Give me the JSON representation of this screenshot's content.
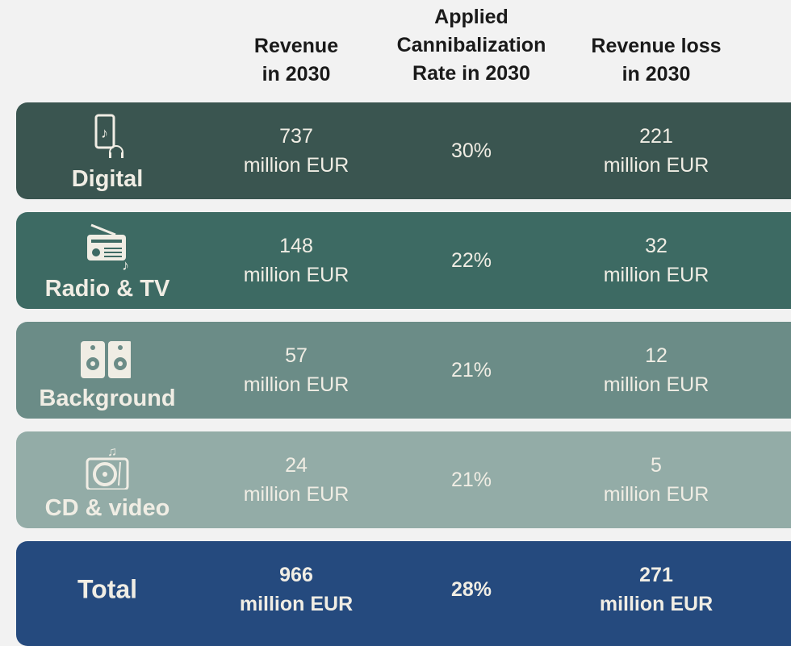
{
  "headers": {
    "revenue": "Revenue in 2030",
    "rate": "Applied Cannibalization Rate in 2030",
    "loss": "Revenue loss in 2030"
  },
  "rows": [
    {
      "label": "Digital",
      "icon": "phone-headphones-icon",
      "revenue": "737",
      "revenue_unit": "million EUR",
      "rate": "30%",
      "loss": "221",
      "loss_unit": "million EUR",
      "color": "#3a5550"
    },
    {
      "label": "Radio & TV",
      "icon": "radio-icon",
      "revenue": "148",
      "revenue_unit": "million EUR",
      "rate": "22%",
      "loss": "32",
      "loss_unit": "million EUR",
      "color": "#3d6a63"
    },
    {
      "label": "Background",
      "icon": "speakers-icon",
      "revenue": "57",
      "revenue_unit": "million EUR",
      "rate": "21%",
      "loss": "12",
      "loss_unit": "million EUR",
      "color": "#6b8c87"
    },
    {
      "label": "CD & video",
      "icon": "turntable-icon",
      "revenue": "24",
      "revenue_unit": "million EUR",
      "rate": "21%",
      "loss": "5",
      "loss_unit": "million EUR",
      "color": "#93aca7"
    }
  ],
  "total": {
    "label": "Total",
    "revenue": "966",
    "revenue_unit": "million EUR",
    "rate": "28%",
    "loss": "271",
    "loss_unit": "million EUR",
    "color": "#254a7e"
  }
}
